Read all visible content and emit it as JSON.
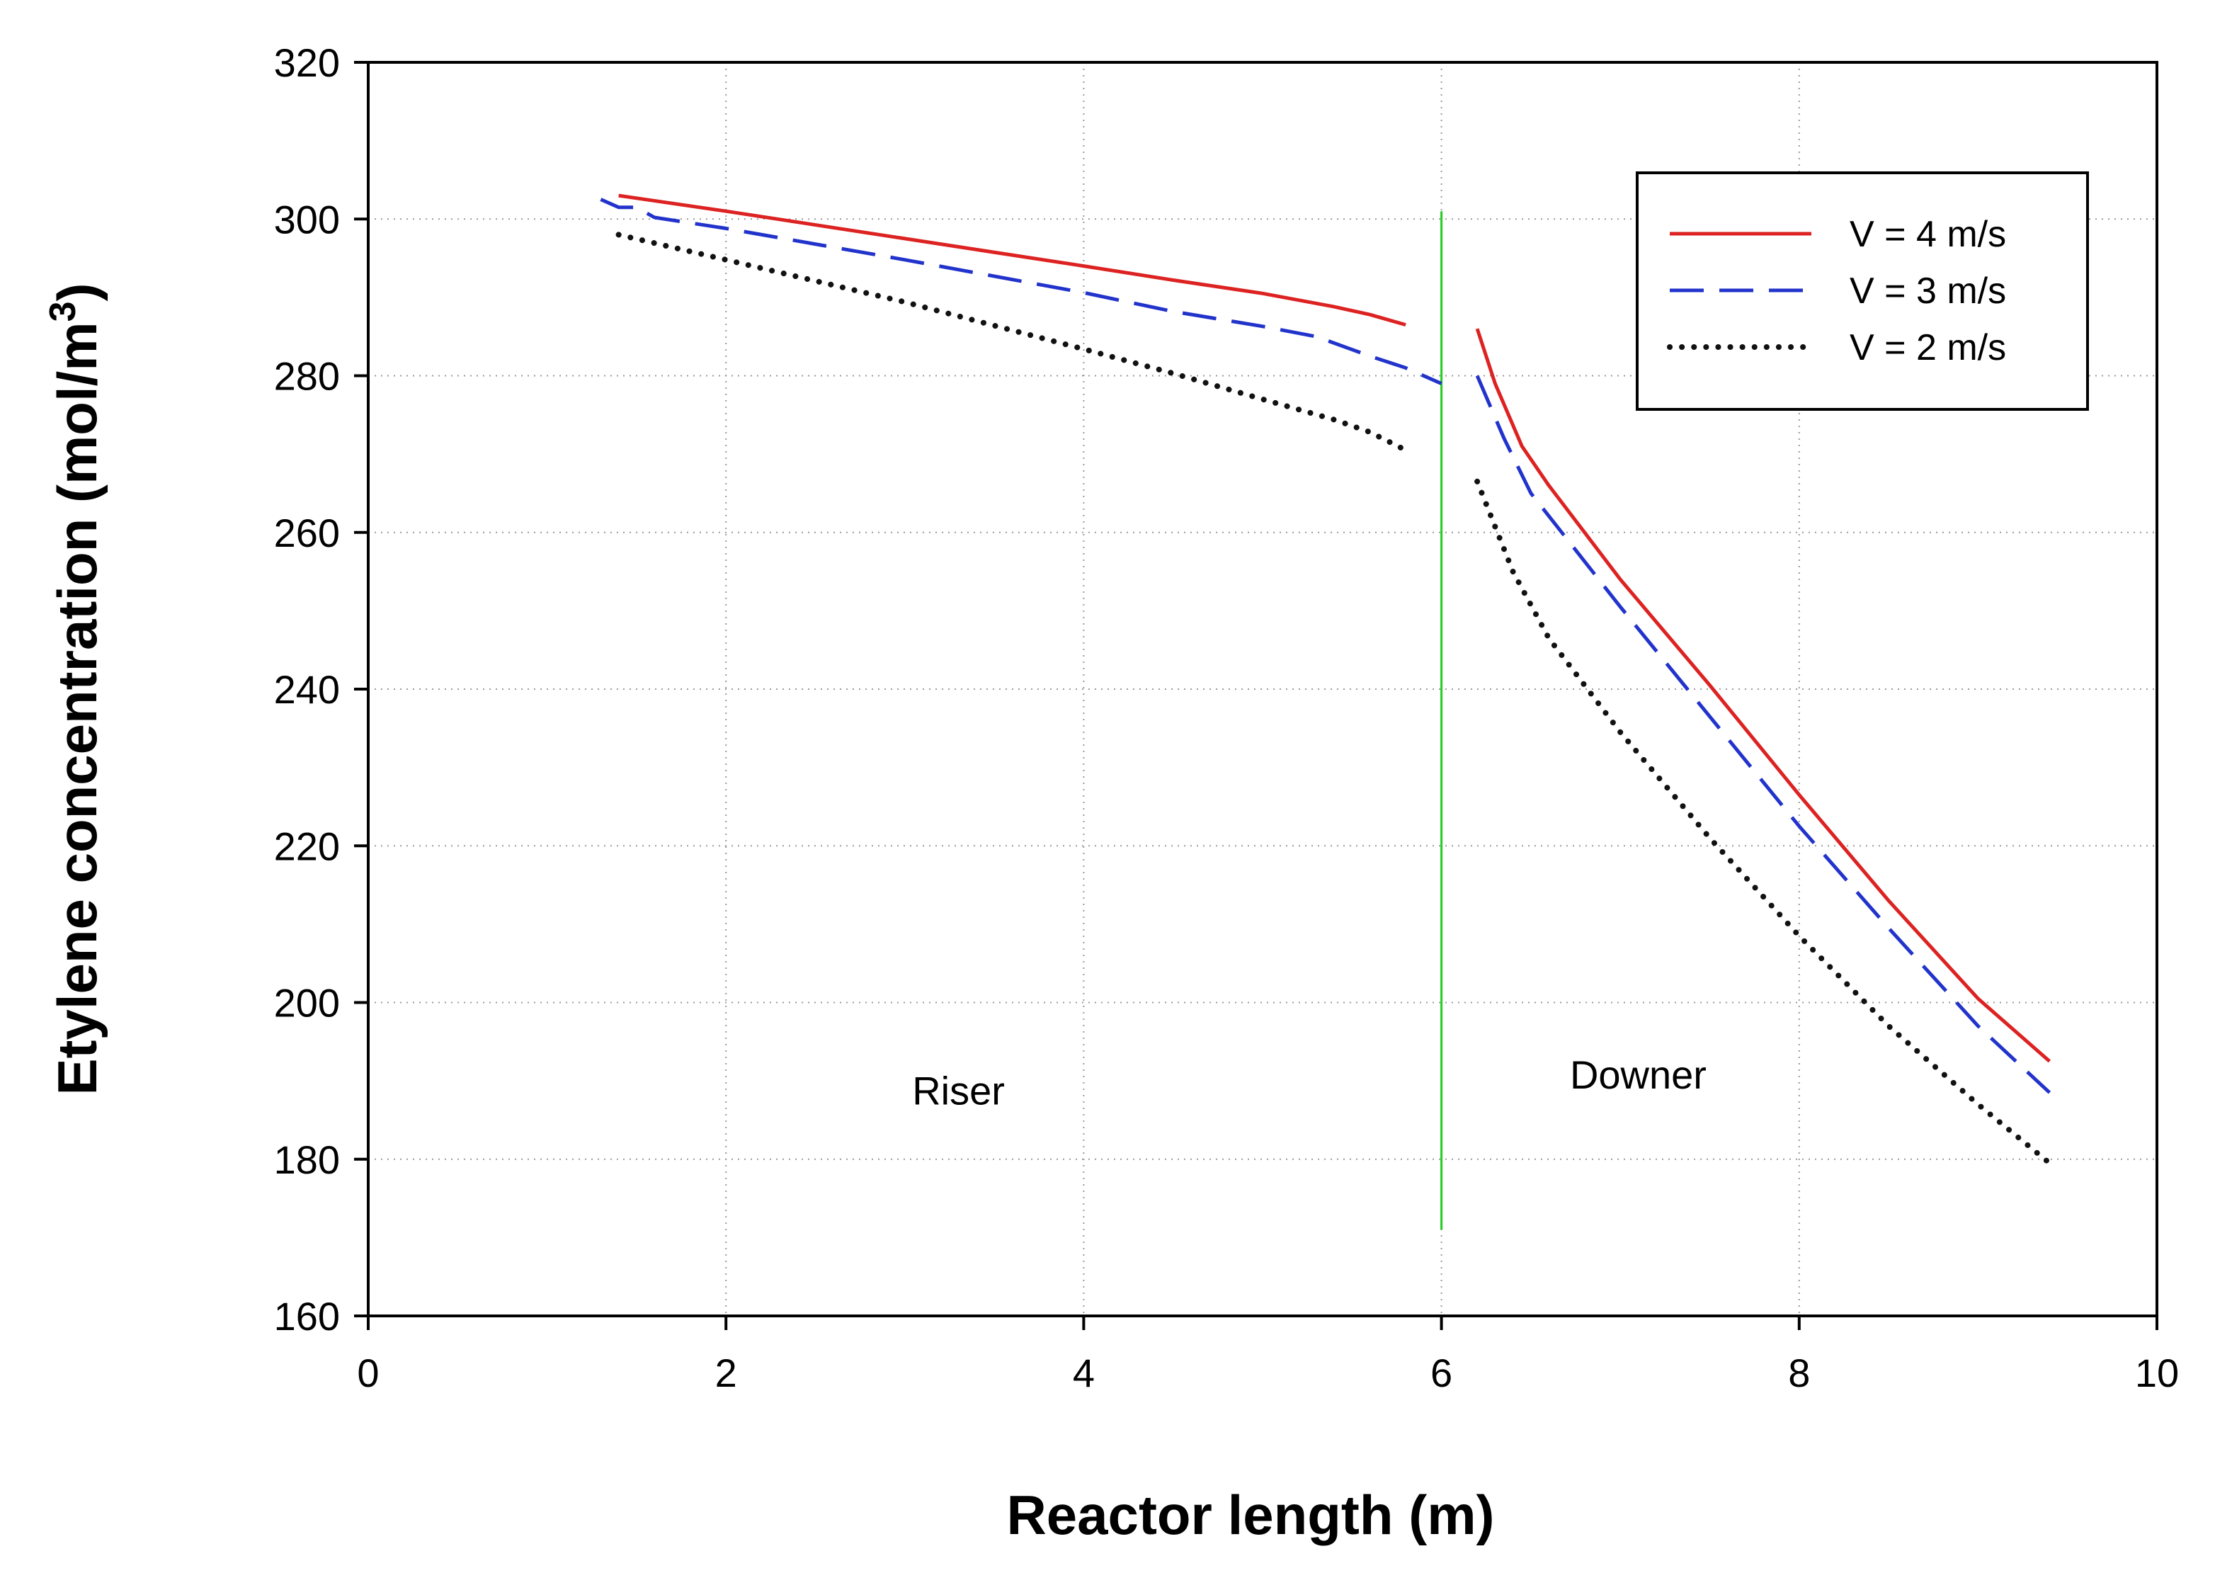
{
  "chart_data": {
    "type": "line",
    "title": "",
    "xlabel": "Reactor length (m)",
    "ylabel": "Etylene concentration (mol/m",
    "ylabel_superscript": "3",
    "ylabel_close": ")",
    "xlim": [
      0,
      10
    ],
    "ylim": [
      160,
      320
    ],
    "xticks": [
      0,
      2,
      4,
      6,
      8,
      10
    ],
    "yticks": [
      160,
      180,
      200,
      220,
      240,
      260,
      280,
      300,
      320
    ],
    "grid": true,
    "legend_position": "top-right",
    "series": [
      {
        "name": "V = 4 m/s",
        "color": "#dd2222",
        "style": "solid",
        "segments": [
          {
            "x": [
              1.4,
              2.0,
              3.0,
              4.0,
              4.5,
              5.0,
              5.4,
              5.6,
              5.8
            ],
            "y": [
              303,
              301,
              297.5,
              294,
              292.2,
              290.5,
              288.8,
              287.8,
              286.5
            ]
          },
          {
            "x": [
              6.2,
              6.3,
              6.45,
              6.6,
              7.0,
              7.5,
              8.0,
              8.5,
              9.0,
              9.2,
              9.4
            ],
            "y": [
              286,
              279,
              271,
              266,
              254,
              240.5,
              226.5,
              213,
              200.5,
              196.5,
              192.5
            ]
          }
        ]
      },
      {
        "name": "V = 3 m/s",
        "color": "#2233cc",
        "style": "dashed",
        "segments": [
          {
            "x": [
              1.3,
              1.4,
              1.5,
              1.6,
              2.0,
              3.0,
              4.0,
              4.5,
              5.0,
              5.3,
              5.6,
              5.8,
              6.0
            ],
            "y": [
              302.5,
              301.5,
              301.5,
              300.2,
              298.8,
              294.8,
              290.6,
              288.2,
              286.3,
              285,
              282.5,
              281,
              279
            ]
          },
          {
            "x": [
              6.2,
              6.35,
              6.5,
              7.0,
              7.5,
              8.0,
              8.5,
              9.0,
              9.4
            ],
            "y": [
              280,
              272,
              265,
              250.5,
              236.5,
              222.5,
              209.5,
              197,
              188.5
            ]
          }
        ]
      },
      {
        "name": "V = 2 m/s",
        "color": "#111111",
        "style": "dotted",
        "segments": [
          {
            "x": [
              1.4,
              2.0,
              3.0,
              4.0,
              4.5,
              5.0,
              5.4,
              5.6,
              5.8
            ],
            "y": [
              298,
              294.8,
              289.4,
              283.4,
              280.3,
              277,
              274.4,
              272.8,
              270.5
            ]
          },
          {
            "x": [
              6.2,
              6.4,
              6.6,
              7.0,
              7.5,
              8.0,
              8.5,
              9.0,
              9.4
            ],
            "y": [
              266.5,
              255,
              246.5,
              234.5,
              221,
              208.5,
              197,
              187,
              179.5
            ]
          }
        ]
      }
    ],
    "divider": {
      "x": 6,
      "y_from": 171,
      "y_to": 301,
      "color": "#22cc22"
    },
    "annotations": [
      {
        "text": "Riser",
        "x": 3.3,
        "y": 187
      },
      {
        "text": "Downer",
        "x": 7.1,
        "y": 189
      }
    ]
  }
}
